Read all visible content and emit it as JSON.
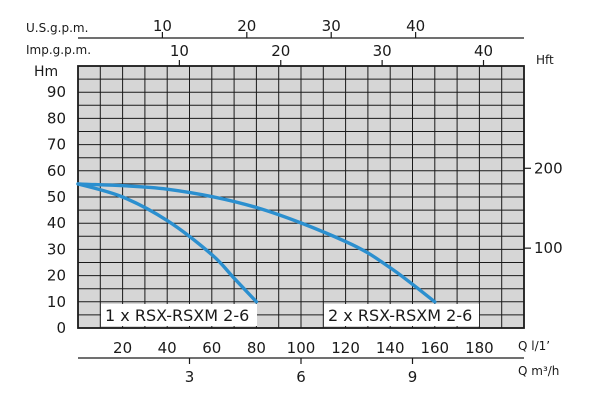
{
  "chart_data": {
    "type": "line",
    "title": "",
    "axes": {
      "usgpm": {
        "label": "U.S.g.p.m.",
        "ticks": [
          10,
          20,
          30,
          40
        ]
      },
      "impgpm": {
        "label": "Imp.g.p.m.",
        "ticks": [
          10,
          20,
          30,
          40
        ]
      },
      "hm": {
        "label": "Hm",
        "ticks": [
          0,
          10,
          20,
          30,
          40,
          50,
          60,
          70,
          80,
          90
        ],
        "ylim": [
          0,
          100
        ]
      },
      "hft": {
        "label": "Hft",
        "ticks": [
          100,
          200
        ]
      },
      "ql": {
        "label": "Q l/1’",
        "ticks": [
          20,
          40,
          60,
          80,
          100,
          120,
          140,
          160,
          180
        ],
        "xlim": [
          0,
          200
        ]
      },
      "qm3h": {
        "label": "Q m³/h",
        "ticks": [
          3,
          6,
          9
        ]
      }
    },
    "grid": true,
    "series": [
      {
        "name": "1 x RSX-RSXM 2-6",
        "x": [
          0,
          20,
          40,
          60,
          70,
          80
        ],
        "y": [
          55,
          50,
          41,
          28,
          19,
          10
        ]
      },
      {
        "name": "2 x RSX-RSXM 2-6",
        "x": [
          0,
          40,
          80,
          120,
          140,
          160
        ],
        "y": [
          55,
          53,
          46,
          33,
          23,
          10
        ]
      }
    ],
    "color": "#2b8fcf"
  }
}
